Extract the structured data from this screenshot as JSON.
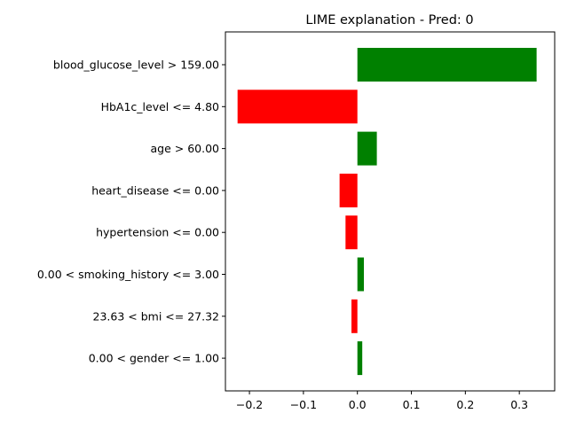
{
  "chart_data": {
    "type": "bar",
    "orientation": "horizontal",
    "title": "LIME explanation - Pred: 0",
    "xlabel": "",
    "ylabel": "",
    "categories": [
      "blood_glucose_level > 159.00",
      "HbA1c_level <= 4.80",
      "age > 60.00",
      "heart_disease <= 0.00",
      "hypertension <= 0.00",
      "0.00 < smoking_history <= 3.00",
      "23.63 < bmi <= 27.32",
      "0.00 < gender <= 1.00"
    ],
    "values": [
      0.332,
      -0.222,
      0.036,
      -0.033,
      -0.022,
      0.012,
      -0.011,
      0.009
    ],
    "xlim": [
      -0.2445,
      0.3655
    ],
    "xticks": [
      -0.2,
      -0.1,
      0.0,
      0.1,
      0.2,
      0.3
    ],
    "xtick_labels": [
      "−0.2",
      "−0.1",
      "0.0",
      "0.1",
      "0.2",
      "0.3"
    ],
    "colors": {
      "positive": "#008000",
      "negative": "#ff0000"
    },
    "grid": false,
    "legend": "none"
  }
}
